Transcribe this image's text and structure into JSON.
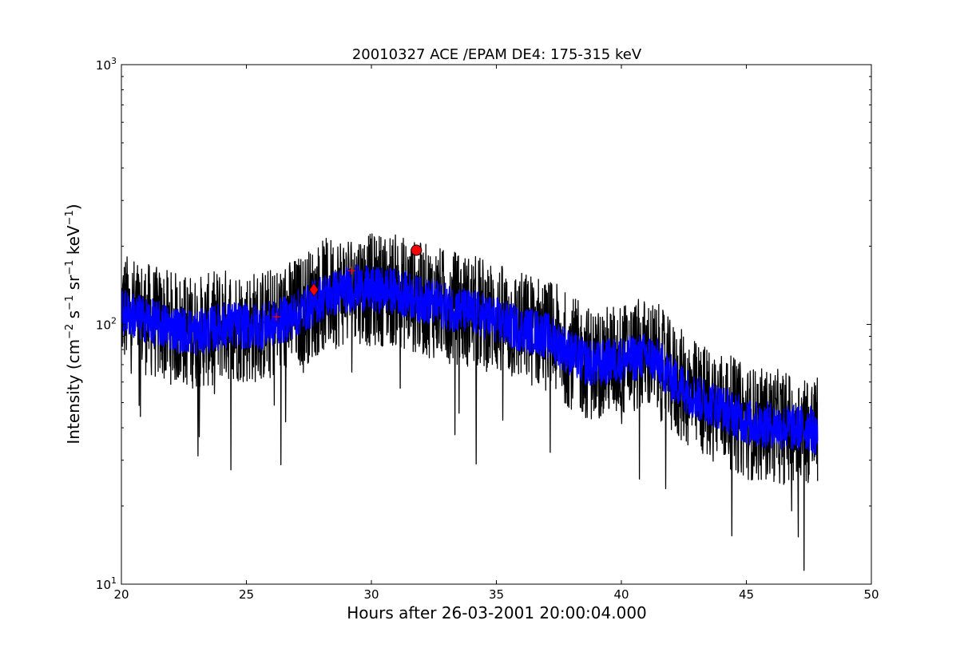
{
  "chart_data": {
    "type": "line",
    "title": "20010327 ACE /EPAM DE4: 175-315 keV",
    "xlabel": "Hours after 26-03-2001 20:00:04.000",
    "ylabel": {
      "prefix": "Intensity (cm",
      "sup1": "−2",
      "mid1": " s",
      "sup2": "−1",
      "mid2": " sr",
      "sup3": "−1",
      "mid3": " keV",
      "sup4": "−1",
      "suffix": ")"
    },
    "xlim": [
      20,
      50
    ],
    "ylim": [
      10,
      1000
    ],
    "yscale": "log",
    "grid": false,
    "xticks": [
      {
        "value": 20,
        "label": "20"
      },
      {
        "value": 25,
        "label": "25"
      },
      {
        "value": 30,
        "label": "30"
      },
      {
        "value": 35,
        "label": "35"
      },
      {
        "value": 40,
        "label": "40"
      },
      {
        "value": 45,
        "label": "45"
      },
      {
        "value": 50,
        "label": "50"
      }
    ],
    "yticks": [
      {
        "value": 10,
        "base": "10",
        "exp": "1"
      },
      {
        "value": 100,
        "base": "10",
        "exp": "2"
      },
      {
        "value": 1000,
        "base": "10",
        "exp": "3"
      }
    ],
    "series": [
      {
        "color": "#000000",
        "style": "raw (noisy)",
        "x": [
          20.0,
          20.5,
          21.0,
          21.5,
          22.0,
          22.5,
          23.0,
          23.5,
          24.0,
          24.5,
          25.0,
          25.5,
          26.0,
          26.5,
          27.0,
          27.5,
          28.0,
          28.5,
          29.0,
          29.5,
          30.0,
          30.5,
          31.0,
          31.5,
          32.0,
          32.5,
          33.0,
          33.5,
          34.0,
          34.5,
          35.0,
          35.5,
          36.0,
          36.5,
          37.0,
          37.5,
          38.0,
          38.5,
          39.0,
          39.5,
          40.0,
          40.5,
          41.0,
          41.5,
          42.0,
          42.5,
          43.0,
          43.5,
          44.0,
          44.5,
          45.0,
          45.5,
          46.0,
          46.5,
          47.0,
          47.5,
          47.85
        ],
        "y": [
          115,
          110,
          105,
          100,
          97,
          95,
          93,
          95,
          100,
          100,
          98,
          98,
          100,
          105,
          110,
          118,
          128,
          133,
          137,
          140,
          135,
          137,
          135,
          130,
          125,
          122,
          118,
          115,
          112,
          110,
          105,
          100,
          97,
          95,
          92,
          85,
          78,
          72,
          70,
          72,
          73,
          75,
          77,
          72,
          62,
          57,
          52,
          50,
          48,
          45,
          42,
          41,
          41,
          40,
          40,
          40,
          38
        ],
        "noise_amplitude": 0.22
      },
      {
        "color": "#0000ff",
        "style": "averaged",
        "x": [
          20.0,
          20.5,
          21.0,
          21.5,
          22.0,
          22.5,
          23.0,
          23.5,
          24.0,
          24.5,
          25.0,
          25.5,
          26.0,
          26.5,
          27.0,
          27.5,
          28.0,
          28.5,
          29.0,
          29.5,
          30.0,
          30.5,
          31.0,
          31.5,
          32.0,
          32.5,
          33.0,
          33.5,
          34.0,
          34.5,
          35.0,
          35.5,
          36.0,
          36.5,
          37.0,
          37.5,
          38.0,
          38.5,
          39.0,
          39.5,
          40.0,
          40.5,
          41.0,
          41.5,
          42.0,
          42.5,
          43.0,
          43.5,
          44.0,
          44.5,
          45.0,
          45.5,
          46.0,
          46.5,
          47.0,
          47.5,
          47.85
        ],
        "y": [
          112,
          108,
          104,
          100,
          97,
          95,
          93,
          95,
          99,
          100,
          98,
          98,
          100,
          104,
          110,
          117,
          127,
          132,
          136,
          139,
          135,
          136,
          134,
          129,
          124,
          121,
          117,
          114,
          111,
          108,
          104,
          99,
          96,
          94,
          91,
          84,
          77,
          72,
          70,
          72,
          73,
          74,
          76,
          71,
          62,
          57,
          52,
          50,
          48,
          45,
          42,
          41,
          41,
          40,
          40,
          40,
          38
        ],
        "noise_amplitude": 0.09
      }
    ],
    "markers": [
      {
        "shape": "diamond",
        "color": "#ff0000",
        "x": 27.7,
        "y": 136
      },
      {
        "shape": "circle",
        "color": "#ff0000",
        "x": 31.8,
        "y": 193
      },
      {
        "shape": "plus",
        "color": "#ff0000",
        "x": 29.2,
        "y": 161
      },
      {
        "shape": "plus",
        "color": "#ff0000",
        "x": 26.2,
        "y": 107
      }
    ]
  }
}
